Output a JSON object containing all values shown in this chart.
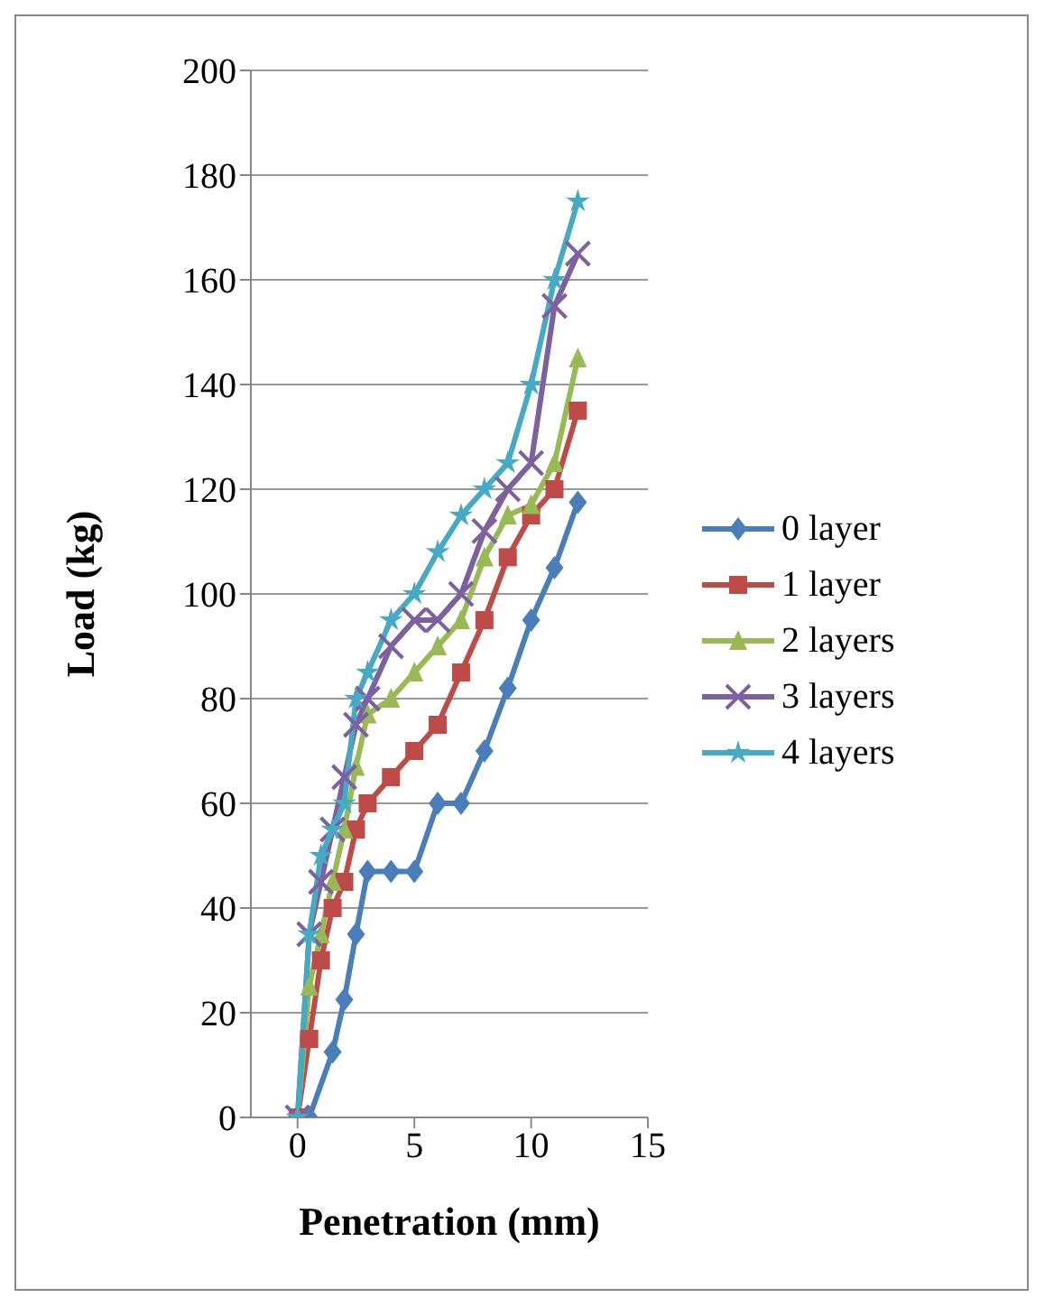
{
  "chart_data": {
    "type": "line",
    "xlabel": "Penetration (mm)",
    "ylabel": "Load (kg)",
    "xlim": [
      -2,
      15
    ],
    "xticks": [
      0,
      5,
      10,
      15
    ],
    "ylim": [
      0,
      200
    ],
    "yticks": [
      0,
      20,
      40,
      60,
      80,
      100,
      120,
      140,
      160,
      180,
      200
    ],
    "grid": "y",
    "legend": "right",
    "series": [
      {
        "name": "0 layer",
        "color": "#4a7ebb",
        "marker": "diamond",
        "x": [
          0.5,
          1.5,
          2,
          2.5,
          3,
          4,
          5,
          6,
          7,
          8,
          9,
          10,
          11,
          12
        ],
        "values": [
          0,
          12.5,
          22.5,
          35,
          47,
          47,
          47,
          60,
          60,
          70,
          82,
          95,
          105,
          117.5
        ]
      },
      {
        "name": "1 layer",
        "color": "#be4b48",
        "marker": "square",
        "x": [
          0,
          0.5,
          1,
          1.5,
          2,
          2.5,
          3,
          4,
          5,
          6,
          7,
          8,
          9,
          10,
          11,
          12
        ],
        "values": [
          0,
          15,
          30,
          40,
          45,
          55,
          60,
          65,
          70,
          75,
          85,
          95,
          107,
          115,
          120,
          135
        ]
      },
      {
        "name": "2 layers",
        "color": "#98b954",
        "marker": "triangle",
        "x": [
          0,
          0.5,
          1,
          1.5,
          2,
          2.5,
          3,
          4,
          5,
          6,
          7,
          8,
          9,
          10,
          11,
          12
        ],
        "values": [
          0,
          25,
          35,
          45,
          55,
          67,
          77,
          80,
          85,
          90,
          95,
          107,
          115,
          117,
          125,
          145
        ]
      },
      {
        "name": "3 layers",
        "color": "#7d60a0",
        "marker": "cross",
        "x": [
          0,
          0.5,
          1,
          1.5,
          2,
          2.5,
          3,
          4,
          5,
          6,
          7,
          8,
          9,
          10,
          11,
          12
        ],
        "values": [
          0,
          35,
          45,
          55,
          65,
          75,
          80,
          90,
          95,
          95,
          100,
          112,
          120,
          125,
          155,
          165
        ]
      },
      {
        "name": "4 layers",
        "color": "#46aac5",
        "marker": "star",
        "x": [
          0,
          0.5,
          1,
          1.5,
          2,
          2.5,
          3,
          4,
          5,
          6,
          7,
          8,
          9,
          10,
          11,
          12
        ],
        "values": [
          0,
          35,
          50,
          55,
          60,
          80,
          85,
          95,
          100,
          108,
          115,
          120,
          125,
          140,
          160,
          175
        ]
      }
    ]
  }
}
